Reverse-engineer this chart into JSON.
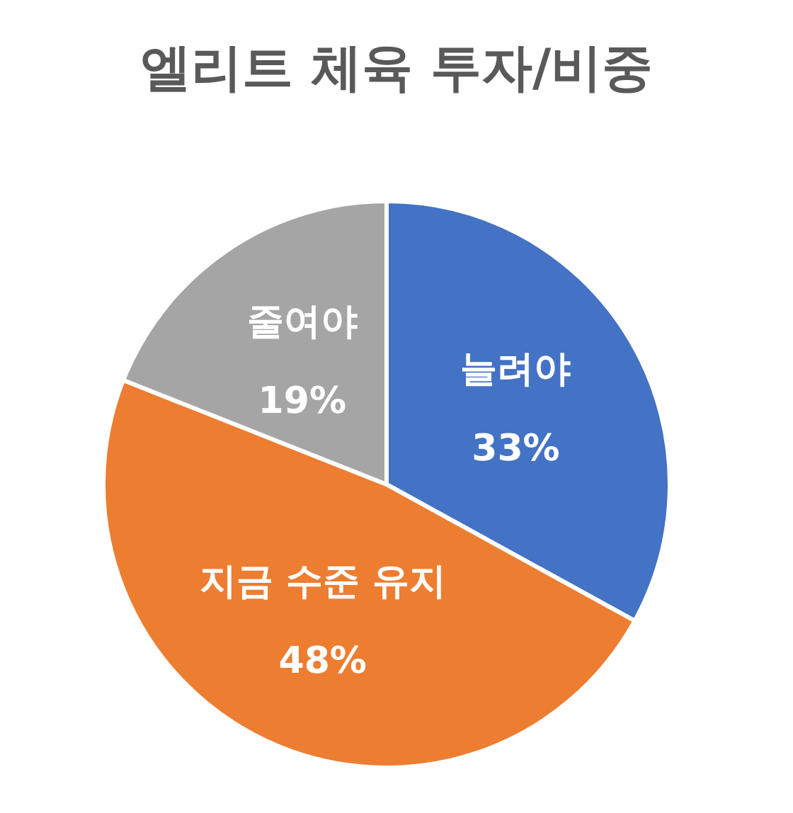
{
  "chart_data": {
    "type": "pie",
    "title": "엘리트 체육 투자/비중",
    "categories": [
      "늘려야",
      "지금 수준 유지",
      "줄여야"
    ],
    "values": [
      33,
      48,
      19
    ],
    "colors": [
      "#4472c4",
      "#ed7d31",
      "#a5a5a5"
    ],
    "value_labels": [
      "33%",
      "48%",
      "19%"
    ],
    "legend": false
  }
}
